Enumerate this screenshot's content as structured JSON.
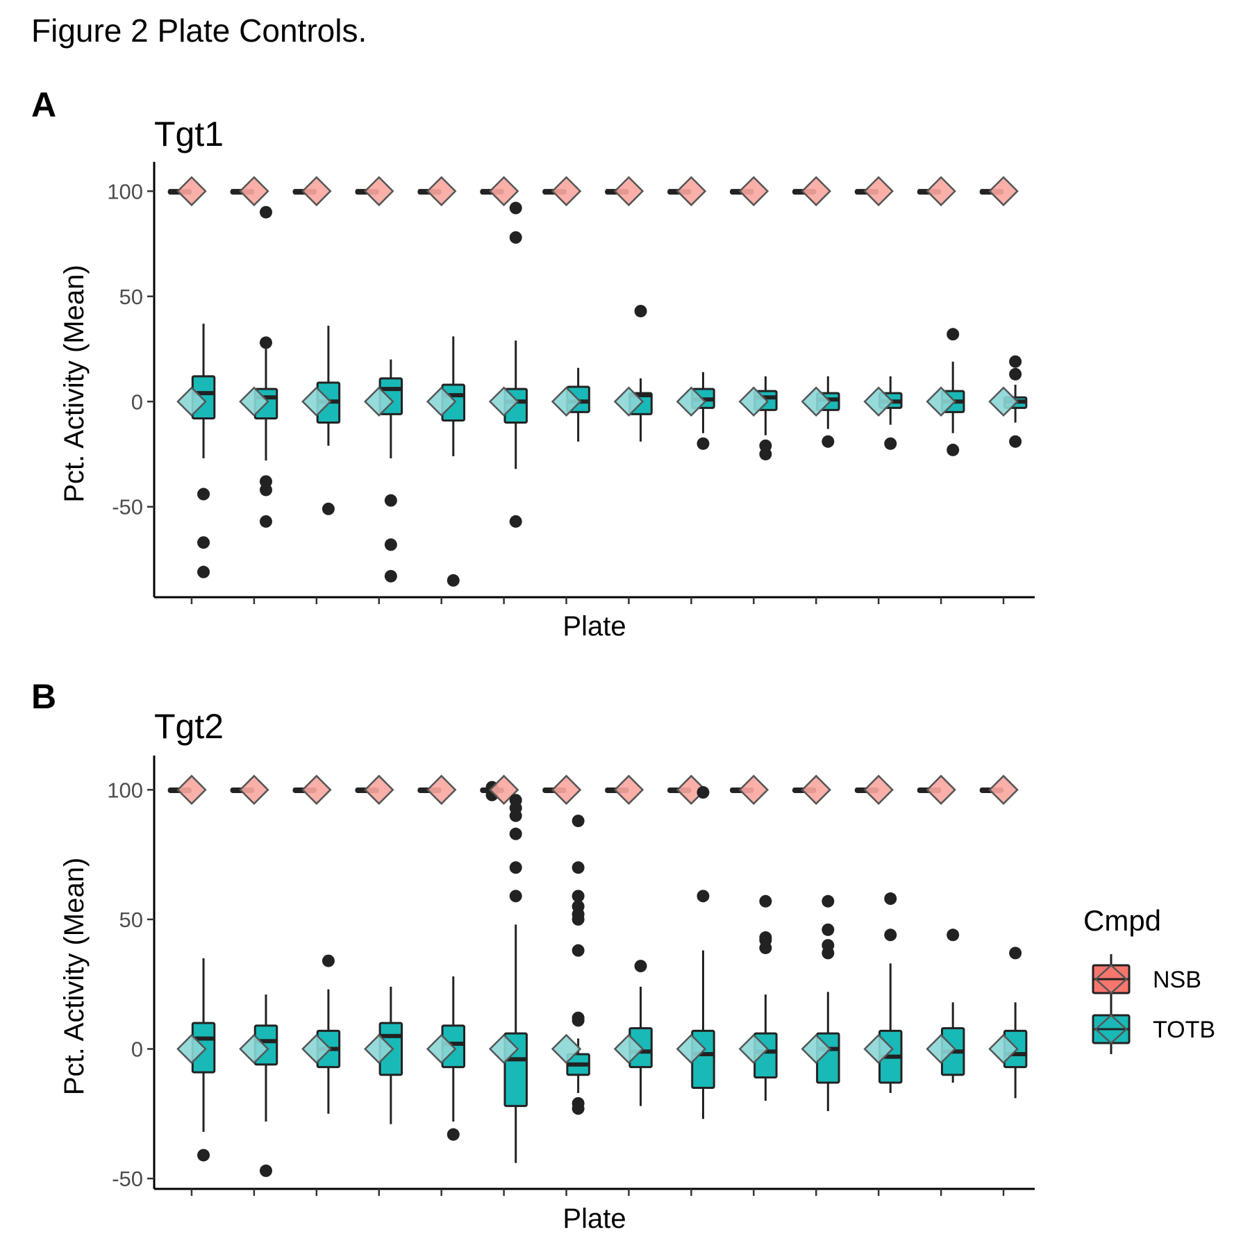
{
  "figure": {
    "title": "Figure 2 Plate Controls."
  },
  "colors": {
    "nsb_fill": "#F8766D",
    "nsb_diamond": "#F9A6A0",
    "totb_fill": "#19B9B7",
    "totb_diamond": "#8BD6D6",
    "outline": "#222222"
  },
  "legend": {
    "title": "Cmpd",
    "items": [
      {
        "label": "NSB",
        "color": "#F8766D"
      },
      {
        "label": "TOTB",
        "color": "#19B9B7"
      }
    ]
  },
  "chart_data": [
    {
      "panel_label": "A",
      "title": "Tgt1",
      "type": "box",
      "xlabel": "Plate",
      "ylabel": "Pct. Activity (Mean)",
      "yticks": [
        100,
        50,
        0,
        -50
      ],
      "ylim": [
        -93,
        110
      ],
      "plates": 14,
      "series": [
        {
          "name": "NSB",
          "mean": [
            100,
            100,
            100,
            100,
            100,
            100,
            100,
            100,
            100,
            100,
            100,
            100,
            100,
            100
          ],
          "boxes": [
            {
              "q1": 99.5,
              "median": 100,
              "q3": 100.5,
              "lower": 99.5,
              "upper": 100.5,
              "outliers": []
            },
            {
              "q1": 99.5,
              "median": 100,
              "q3": 100.5,
              "lower": 99.5,
              "upper": 100.5,
              "outliers": []
            },
            {
              "q1": 99.5,
              "median": 100,
              "q3": 100.5,
              "lower": 99.5,
              "upper": 100.5,
              "outliers": []
            },
            {
              "q1": 99.5,
              "median": 100,
              "q3": 100.5,
              "lower": 99.5,
              "upper": 100.5,
              "outliers": []
            },
            {
              "q1": 99.5,
              "median": 100,
              "q3": 100.5,
              "lower": 99.5,
              "upper": 100.5,
              "outliers": []
            },
            {
              "q1": 99.5,
              "median": 100,
              "q3": 100.5,
              "lower": 99.5,
              "upper": 100.5,
              "outliers": []
            },
            {
              "q1": 99.5,
              "median": 100,
              "q3": 100.5,
              "lower": 99.5,
              "upper": 100.5,
              "outliers": []
            },
            {
              "q1": 99.5,
              "median": 100,
              "q3": 100.5,
              "lower": 99.5,
              "upper": 100.5,
              "outliers": []
            },
            {
              "q1": 99.5,
              "median": 100,
              "q3": 100.5,
              "lower": 99.5,
              "upper": 100.5,
              "outliers": []
            },
            {
              "q1": 99.5,
              "median": 100,
              "q3": 100.5,
              "lower": 99.5,
              "upper": 100.5,
              "outliers": []
            },
            {
              "q1": 99.5,
              "median": 100,
              "q3": 100.5,
              "lower": 99.5,
              "upper": 100.5,
              "outliers": []
            },
            {
              "q1": 99.5,
              "median": 100,
              "q3": 100.5,
              "lower": 99.5,
              "upper": 100.5,
              "outliers": []
            },
            {
              "q1": 99.5,
              "median": 100,
              "q3": 100.5,
              "lower": 99.5,
              "upper": 100.5,
              "outliers": []
            },
            {
              "q1": 99.5,
              "median": 100,
              "q3": 100.5,
              "lower": 99.5,
              "upper": 100.5,
              "outliers": []
            }
          ]
        },
        {
          "name": "TOTB",
          "mean": [
            0,
            0,
            0,
            0,
            0,
            0,
            0,
            0,
            0,
            0,
            0,
            0,
            0,
            0
          ],
          "boxes": [
            {
              "q1": -8,
              "median": 4,
              "q3": 12,
              "lower": -27,
              "upper": 37,
              "outliers": [
                -44,
                -67,
                -81
              ]
            },
            {
              "q1": -8,
              "median": 2,
              "q3": 6,
              "lower": -28,
              "upper": 25,
              "outliers": [
                90,
                28,
                -38,
                -42,
                -57
              ]
            },
            {
              "q1": -10,
              "median": 0,
              "q3": 9,
              "lower": -21,
              "upper": 36,
              "outliers": [
                -51
              ]
            },
            {
              "q1": -6,
              "median": 6,
              "q3": 11,
              "lower": -27,
              "upper": 20,
              "outliers": [
                -47,
                -68,
                -83
              ]
            },
            {
              "q1": -9,
              "median": 3,
              "q3": 8,
              "lower": -26,
              "upper": 31,
              "outliers": [
                -85
              ]
            },
            {
              "q1": -10,
              "median": 0,
              "q3": 6,
              "lower": -32,
              "upper": 29,
              "outliers": [
                92,
                78,
                -57
              ]
            },
            {
              "q1": -5,
              "median": 0,
              "q3": 7,
              "lower": -19,
              "upper": 16,
              "outliers": []
            },
            {
              "q1": -6,
              "median": 3,
              "q3": 4,
              "lower": -19,
              "upper": 11,
              "outliers": [
                43
              ]
            },
            {
              "q1": -3,
              "median": 1,
              "q3": 6,
              "lower": -15,
              "upper": 14,
              "outliers": [
                -20
              ]
            },
            {
              "q1": -4,
              "median": 2,
              "q3": 5,
              "lower": -16,
              "upper": 12,
              "outliers": [
                -21,
                -25
              ]
            },
            {
              "q1": -4,
              "median": 1,
              "q3": 4,
              "lower": -13,
              "upper": 12,
              "outliers": [
                -19
              ]
            },
            {
              "q1": -3,
              "median": 0,
              "q3": 4,
              "lower": -11,
              "upper": 12,
              "outliers": [
                -20
              ]
            },
            {
              "q1": -5,
              "median": 0,
              "q3": 5,
              "lower": -15,
              "upper": 19,
              "outliers": [
                32,
                -23
              ]
            },
            {
              "q1": -3,
              "median": 0,
              "q3": 2,
              "lower": -10,
              "upper": 8,
              "outliers": [
                19,
                13,
                -19
              ]
            }
          ]
        }
      ]
    },
    {
      "panel_label": "B",
      "title": "Tgt2",
      "type": "box",
      "xlabel": "Plate",
      "ylabel": "Pct. Activity (Mean)",
      "yticks": [
        100,
        50,
        0,
        -50
      ],
      "ylim": [
        -54,
        110
      ],
      "plates": 14,
      "series": [
        {
          "name": "NSB",
          "mean": [
            100,
            100,
            100,
            100,
            100,
            100,
            100,
            100,
            100,
            100,
            100,
            100,
            100,
            100
          ],
          "boxes": [
            {
              "q1": 99.5,
              "median": 100,
              "q3": 100.5,
              "lower": 99.5,
              "upper": 100.5,
              "outliers": []
            },
            {
              "q1": 99.5,
              "median": 100,
              "q3": 100.5,
              "lower": 99.5,
              "upper": 100.5,
              "outliers": []
            },
            {
              "q1": 99.5,
              "median": 100,
              "q3": 100.5,
              "lower": 99.5,
              "upper": 100.5,
              "outliers": []
            },
            {
              "q1": 99.5,
              "median": 100,
              "q3": 100.5,
              "lower": 99.5,
              "upper": 100.5,
              "outliers": []
            },
            {
              "q1": 99.5,
              "median": 100,
              "q3": 100.5,
              "lower": 99.5,
              "upper": 100.5,
              "outliers": []
            },
            {
              "q1": 99.5,
              "median": 100,
              "q3": 100.5,
              "lower": 99.5,
              "upper": 100.5,
              "outliers": [
                101,
                98
              ]
            },
            {
              "q1": 99.5,
              "median": 100,
              "q3": 100.5,
              "lower": 99.5,
              "upper": 100.5,
              "outliers": []
            },
            {
              "q1": 99.5,
              "median": 100,
              "q3": 100.5,
              "lower": 99.5,
              "upper": 100.5,
              "outliers": []
            },
            {
              "q1": 99.5,
              "median": 100,
              "q3": 100.5,
              "lower": 99.5,
              "upper": 100.5,
              "outliers": []
            },
            {
              "q1": 99.5,
              "median": 100,
              "q3": 100.5,
              "lower": 99.5,
              "upper": 100.5,
              "outliers": []
            },
            {
              "q1": 99.5,
              "median": 100,
              "q3": 100.5,
              "lower": 99.5,
              "upper": 100.5,
              "outliers": []
            },
            {
              "q1": 99.5,
              "median": 100,
              "q3": 100.5,
              "lower": 99.5,
              "upper": 100.5,
              "outliers": []
            },
            {
              "q1": 99.5,
              "median": 100,
              "q3": 100.5,
              "lower": 99.5,
              "upper": 100.5,
              "outliers": []
            },
            {
              "q1": 99.5,
              "median": 100,
              "q3": 100.5,
              "lower": 99.5,
              "upper": 100.5,
              "outliers": []
            }
          ]
        },
        {
          "name": "TOTB",
          "mean": [
            0,
            0,
            0,
            0,
            0,
            0,
            0,
            0,
            0,
            0,
            0,
            0,
            0,
            0
          ],
          "boxes": [
            {
              "q1": -9,
              "median": 4,
              "q3": 10,
              "lower": -32,
              "upper": 35,
              "outliers": [
                -41
              ]
            },
            {
              "q1": -6,
              "median": 3,
              "q3": 9,
              "lower": -28,
              "upper": 21,
              "outliers": [
                -47
              ]
            },
            {
              "q1": -7,
              "median": 0,
              "q3": 7,
              "lower": -25,
              "upper": 23,
              "outliers": [
                34
              ]
            },
            {
              "q1": -10,
              "median": 5,
              "q3": 10,
              "lower": -29,
              "upper": 24,
              "outliers": []
            },
            {
              "q1": -7,
              "median": 2,
              "q3": 9,
              "lower": -28,
              "upper": 28,
              "outliers": [
                -33
              ]
            },
            {
              "q1": -22,
              "median": -4,
              "q3": 6,
              "lower": -44,
              "upper": 48,
              "outliers": [
                96,
                93,
                90,
                83,
                70,
                59
              ]
            },
            {
              "q1": -10,
              "median": -6,
              "q3": -2,
              "lower": -17,
              "upper": 4,
              "outliers": [
                88,
                70,
                59,
                55,
                52,
                50,
                38,
                12,
                11,
                -21,
                -23
              ]
            },
            {
              "q1": -7,
              "median": -1,
              "q3": 8,
              "lower": -22,
              "upper": 24,
              "outliers": [
                32
              ]
            },
            {
              "q1": -15,
              "median": -2,
              "q3": 7,
              "lower": -27,
              "upper": 38,
              "outliers": [
                99,
                59
              ]
            },
            {
              "q1": -11,
              "median": -1,
              "q3": 6,
              "lower": -20,
              "upper": 21,
              "outliers": [
                57,
                43,
                42,
                39
              ]
            },
            {
              "q1": -13,
              "median": 0,
              "q3": 6,
              "lower": -24,
              "upper": 22,
              "outliers": [
                57,
                46,
                40,
                37
              ]
            },
            {
              "q1": -13,
              "median": -3,
              "q3": 7,
              "lower": -17,
              "upper": 33,
              "outliers": [
                58,
                44
              ]
            },
            {
              "q1": -10,
              "median": -1,
              "q3": 8,
              "lower": -13,
              "upper": 18,
              "outliers": [
                44
              ]
            },
            {
              "q1": -7,
              "median": -2,
              "q3": 7,
              "lower": -19,
              "upper": 18,
              "outliers": [
                37
              ]
            }
          ]
        }
      ]
    }
  ]
}
